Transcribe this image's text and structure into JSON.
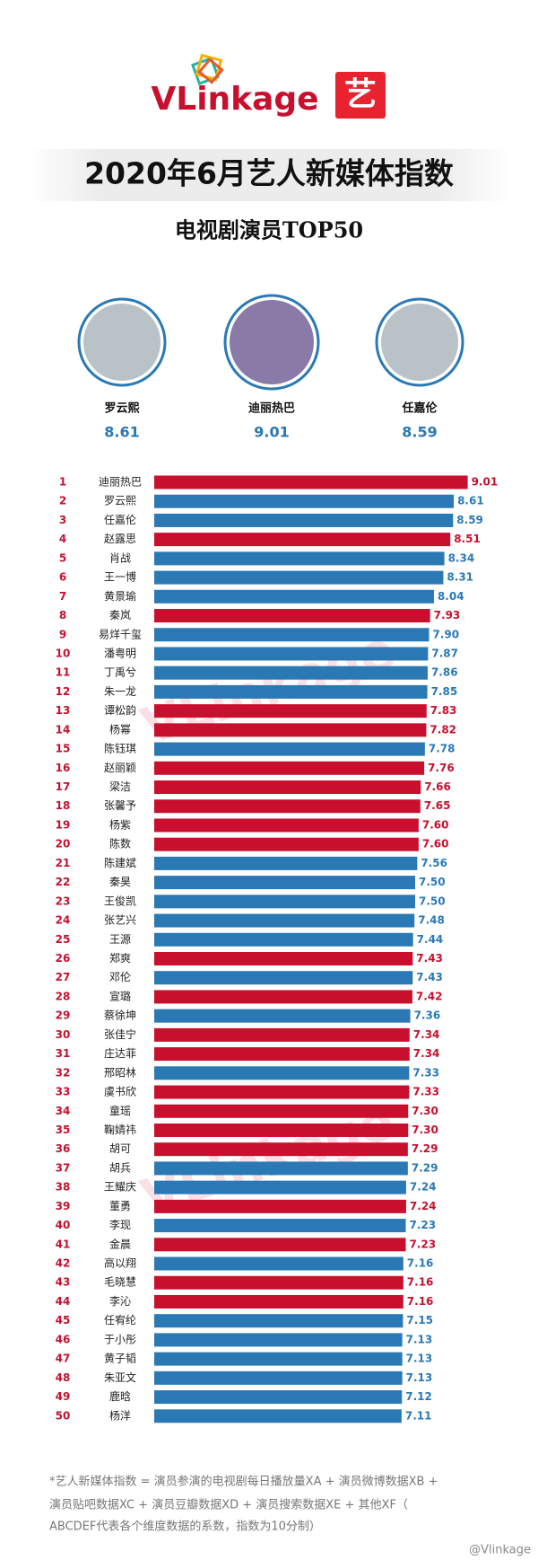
{
  "header": {
    "logo": "VLinkage",
    "badge": "艺",
    "title": "2020年6月艺人新媒体指数",
    "subtitle": "电视剧演员TOP50"
  },
  "podium": [
    {
      "name": "罗云熙",
      "value": 8.61
    },
    {
      "name": "迪丽热巴",
      "value": 9.01
    },
    {
      "name": "任嘉伦",
      "value": 8.59
    }
  ],
  "chart_data": {
    "type": "hbar",
    "ranks": [
      1,
      2,
      3,
      4,
      5,
      6,
      7,
      8,
      9,
      10,
      11,
      12,
      13,
      14,
      15,
      16,
      17,
      18,
      19,
      20,
      21,
      22,
      23,
      24,
      25,
      26,
      27,
      28,
      29,
      30,
      31,
      32,
      33,
      34,
      35,
      36,
      37,
      38,
      39,
      40,
      41,
      42,
      43,
      44,
      45,
      46,
      47,
      48,
      49,
      50
    ],
    "categories": [
      "迪丽热巴",
      "罗云熙",
      "任嘉伦",
      "赵露思",
      "肖战",
      "王一博",
      "黄景瑜",
      "秦岚",
      "易烊千玺",
      "潘粤明",
      "丁禹兮",
      "朱一龙",
      "谭松韵",
      "杨幂",
      "陈钰琪",
      "赵丽颖",
      "梁洁",
      "张馨予",
      "杨紫",
      "陈数",
      "陈建斌",
      "秦昊",
      "王俊凯",
      "张艺兴",
      "王源",
      "郑爽",
      "邓伦",
      "宣璐",
      "蔡徐坤",
      "张佳宁",
      "庄达菲",
      "邢昭林",
      "虞书欣",
      "童瑶",
      "鞠婧祎",
      "胡可",
      "胡兵",
      "王耀庆",
      "董勇",
      "李现",
      "金晨",
      "高以翔",
      "毛晓慧",
      "李沁",
      "任宥纶",
      "于小彤",
      "黄子韬",
      "朱亚文",
      "鹿晗",
      "杨洋"
    ],
    "values": [
      9.01,
      8.61,
      8.59,
      8.51,
      8.34,
      8.31,
      8.04,
      7.93,
      7.9,
      7.87,
      7.86,
      7.85,
      7.83,
      7.82,
      7.78,
      7.76,
      7.66,
      7.65,
      7.6,
      7.6,
      7.56,
      7.5,
      7.5,
      7.48,
      7.44,
      7.43,
      7.43,
      7.42,
      7.36,
      7.34,
      7.34,
      7.33,
      7.33,
      7.3,
      7.3,
      7.29,
      7.29,
      7.24,
      7.24,
      7.23,
      7.23,
      7.16,
      7.16,
      7.16,
      7.15,
      7.13,
      7.13,
      7.13,
      7.12,
      7.11
    ],
    "value_labels": [
      "9.01",
      "8.61",
      "8.59",
      "8.51",
      "8.34",
      "8.31",
      "8.04",
      "7.93",
      "7.90",
      "7.87",
      "7.86",
      "7.85",
      "7.83",
      "7.82",
      "7.78",
      "7.76",
      "7.66",
      "7.65",
      "7.60",
      "7.60",
      "7.56",
      "7.50",
      "7.50",
      "7.48",
      "7.44",
      "7.43",
      "7.43",
      "7.42",
      "7.36",
      "7.34",
      "7.34",
      "7.33",
      "7.33",
      "7.30",
      "7.30",
      "7.29",
      "7.29",
      "7.24",
      "7.24",
      "7.23",
      "7.23",
      "7.16",
      "7.16",
      "7.16",
      "7.15",
      "7.13",
      "7.13",
      "7.13",
      "7.12",
      "7.11"
    ],
    "colors": [
      "#c8102e",
      "#2a79b5",
      "#2a79b5",
      "#c8102e",
      "#2a79b5",
      "#2a79b5",
      "#2a79b5",
      "#c8102e",
      "#2a79b5",
      "#2a79b5",
      "#2a79b5",
      "#2a79b5",
      "#c8102e",
      "#c8102e",
      "#2a79b5",
      "#c8102e",
      "#c8102e",
      "#c8102e",
      "#c8102e",
      "#c8102e",
      "#2a79b5",
      "#2a79b5",
      "#2a79b5",
      "#2a79b5",
      "#2a79b5",
      "#c8102e",
      "#2a79b5",
      "#c8102e",
      "#2a79b5",
      "#c8102e",
      "#c8102e",
      "#2a79b5",
      "#c8102e",
      "#c8102e",
      "#c8102e",
      "#c8102e",
      "#2a79b5",
      "#2a79b5",
      "#c8102e",
      "#2a79b5",
      "#c8102e",
      "#2a79b5",
      "#c8102e",
      "#c8102e",
      "#2a79b5",
      "#2a79b5",
      "#2a79b5",
      "#2a79b5",
      "#2a79b5",
      "#2a79b5"
    ]
  },
  "footnote": [
    "*艺人新媒体指数 = 演员参演的电视剧每日播放量XA + 演员微博数据XB +",
    "演员贴吧数据XC + 演员豆瓣数据XD + 演员搜索数据XE + 其他XF（",
    "ABCDEF代表各个维度数据的系数，指数为10分制）"
  ],
  "credit": "@Vlinkage"
}
